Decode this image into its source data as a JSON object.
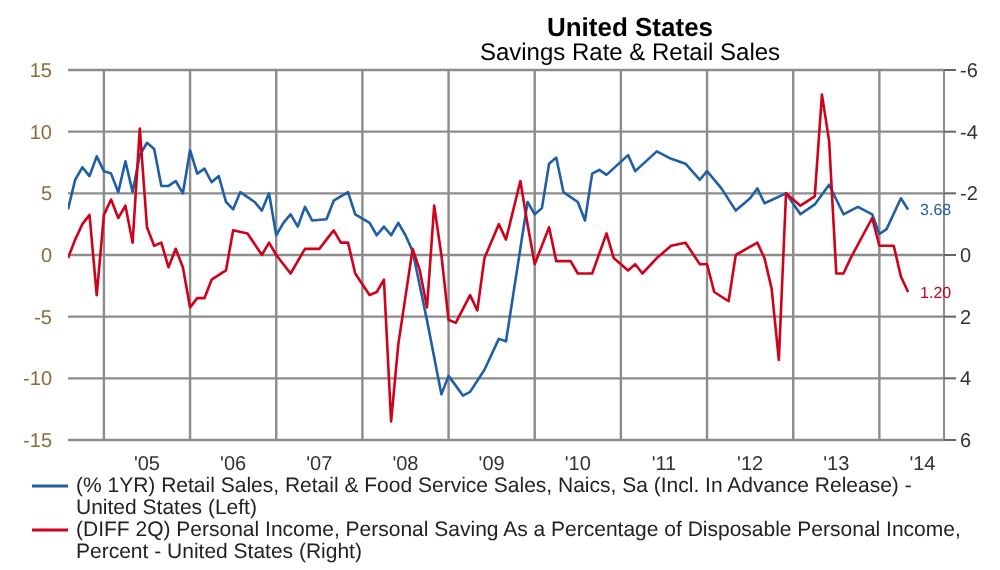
{
  "chart_data": {
    "type": "line",
    "title": "United States",
    "subtitle": "Savings Rate & Retail Sales",
    "xlim": [
      "2004-08",
      "2014-10"
    ],
    "xticks": [
      {
        "value": "2005-01",
        "label": null
      },
      {
        "value": "2005-07",
        "label": "'05"
      },
      {
        "value": "2006-01",
        "label": null
      },
      {
        "value": "2006-07",
        "label": "'06"
      },
      {
        "value": "2007-01",
        "label": null
      },
      {
        "value": "2007-07",
        "label": "'07"
      },
      {
        "value": "2008-01",
        "label": null
      },
      {
        "value": "2008-07",
        "label": "'08"
      },
      {
        "value": "2009-01",
        "label": null
      },
      {
        "value": "2009-07",
        "label": "'09"
      },
      {
        "value": "2010-01",
        "label": null
      },
      {
        "value": "2010-07",
        "label": "'10"
      },
      {
        "value": "2011-01",
        "label": null
      },
      {
        "value": "2011-07",
        "label": "'11"
      },
      {
        "value": "2012-01",
        "label": null
      },
      {
        "value": "2012-07",
        "label": "'12"
      },
      {
        "value": "2013-01",
        "label": null
      },
      {
        "value": "2013-07",
        "label": "'13"
      },
      {
        "value": "2014-01",
        "label": null
      },
      {
        "value": "2014-07",
        "label": "'14"
      }
    ],
    "ylim": [
      -15,
      15
    ],
    "yticks": [
      -15,
      -10,
      -5,
      0,
      5,
      10,
      15
    ],
    "y2lim": [
      6,
      -6
    ],
    "y2ticks": [
      6,
      4,
      2,
      0,
      -2,
      -4,
      -6
    ],
    "grid": true,
    "legend": "bottom",
    "series": [
      {
        "name": "(% 1YR) Retail Sales, Retail & Food Service Sales, Naics, Sa (Incl. In Advance Release) - United States  (Left)",
        "color": "#1f5fa6",
        "x": [
          "2004-08",
          "2004-09",
          "2004-10",
          "2004-11",
          "2004-12",
          "2005-01",
          "2005-02",
          "2005-03",
          "2005-04",
          "2005-05",
          "2005-06",
          "2005-07",
          "2005-08",
          "2005-09",
          "2005-10",
          "2005-11",
          "2005-12",
          "2006-01",
          "2006-02",
          "2006-03",
          "2006-04",
          "2006-05",
          "2006-06",
          "2006-07",
          "2006-08",
          "2006-10",
          "2006-11",
          "2006-12",
          "2007-01",
          "2007-02",
          "2007-03",
          "2007-04",
          "2007-05",
          "2007-06",
          "2007-08",
          "2007-09",
          "2007-11",
          "2007-12",
          "2008-02",
          "2008-03",
          "2008-04",
          "2008-05",
          "2008-06",
          "2008-07",
          "2008-08",
          "2008-10",
          "2008-12",
          "2009-01",
          "2009-03",
          "2009-04",
          "2009-06",
          "2009-08",
          "2009-09",
          "2009-12",
          "2010-01",
          "2010-02",
          "2010-03",
          "2010-04",
          "2010-05",
          "2010-07",
          "2010-08",
          "2010-09",
          "2010-10",
          "2010-11",
          "2011-02",
          "2011-03",
          "2011-06",
          "2011-08",
          "2011-10",
          "2011-12",
          "2012-01",
          "2012-03",
          "2012-05",
          "2012-07",
          "2012-08",
          "2012-09",
          "2012-12",
          "2013-02",
          "2013-04",
          "2013-06",
          "2013-08",
          "2013-10",
          "2013-12",
          "2014-01",
          "2014-02",
          "2014-04",
          "2014-05"
        ],
        "values": [
          3.7,
          6.1,
          7.1,
          6.4,
          8.0,
          6.8,
          6.6,
          5.1,
          7.6,
          5.1,
          8.1,
          9.1,
          8.6,
          5.6,
          5.6,
          6.0,
          5.0,
          8.5,
          6.6,
          7.0,
          5.9,
          6.4,
          4.3,
          3.7,
          5.1,
          4.3,
          3.6,
          5.0,
          1.6,
          2.6,
          3.3,
          2.3,
          3.9,
          2.8,
          2.9,
          4.4,
          5.1,
          3.3,
          2.6,
          1.6,
          2.3,
          1.6,
          2.6,
          1.6,
          0.3,
          -5.3,
          -11.3,
          -9.8,
          -11.4,
          -11.1,
          -9.3,
          -6.8,
          -7.0,
          4.3,
          3.3,
          3.8,
          7.4,
          7.9,
          5.1,
          4.3,
          2.8,
          6.6,
          6.9,
          6.5,
          8.1,
          6.8,
          8.4,
          7.8,
          7.4,
          6.1,
          6.8,
          5.4,
          3.6,
          4.6,
          5.4,
          4.2,
          5.0,
          3.3,
          4.1,
          5.7,
          3.3,
          3.9,
          3.3,
          1.7,
          2.1,
          4.6,
          3.68
        ],
        "value_labels": [
          null,
          null,
          null,
          null,
          null,
          null,
          null,
          null,
          null,
          null,
          null,
          null,
          null,
          null,
          null,
          null,
          null,
          null,
          null,
          null,
          null,
          null,
          null,
          null,
          null,
          null,
          null,
          null,
          null,
          null,
          null,
          null,
          null,
          null,
          null,
          null,
          null,
          null,
          null,
          null,
          null,
          null,
          null,
          null,
          null,
          null,
          null,
          null,
          null,
          null,
          null,
          null,
          null,
          null,
          null,
          null,
          null,
          null,
          null,
          null,
          null,
          null,
          null,
          null,
          null,
          null,
          null,
          null,
          null,
          null,
          null,
          null,
          null,
          null,
          null,
          null,
          null,
          null,
          null,
          null,
          null,
          null,
          null,
          null,
          null,
          null,
          "3.68"
        ]
      },
      {
        "name": "(DIFF 2Q) Personal Income, Personal Saving As a Percentage of Disposable Personal Income, Percent - United States  (Right)",
        "color": "#d0021b",
        "axis": "y2",
        "x": [
          "2004-08",
          "2004-09",
          "2004-10",
          "2004-11",
          "2004-12",
          "2005-01",
          "2005-02",
          "2005-03",
          "2005-04",
          "2005-05",
          "2005-06",
          "2005-07",
          "2005-08",
          "2005-09",
          "2005-10",
          "2005-11",
          "2005-12",
          "2006-01",
          "2006-02",
          "2006-03",
          "2006-04",
          "2006-06",
          "2006-07",
          "2006-09",
          "2006-11",
          "2006-12",
          "2007-01",
          "2007-03",
          "2007-05",
          "2007-07",
          "2007-09",
          "2007-10",
          "2007-11",
          "2007-12",
          "2008-02",
          "2008-03",
          "2008-04",
          "2008-05",
          "2008-06",
          "2008-08",
          "2008-09",
          "2008-10",
          "2008-11",
          "2008-12",
          "2009-01",
          "2009-02",
          "2009-04",
          "2009-05",
          "2009-06",
          "2009-08",
          "2009-09",
          "2009-11",
          "2009-12",
          "2010-01",
          "2010-03",
          "2010-04",
          "2010-06",
          "2010-07",
          "2010-09",
          "2010-11",
          "2010-12",
          "2011-02",
          "2011-03",
          "2011-04",
          "2011-06",
          "2011-08",
          "2011-10",
          "2011-12",
          "2012-01",
          "2012-02",
          "2012-04",
          "2012-05",
          "2012-08",
          "2012-09",
          "2012-10",
          "2012-11",
          "2012-12",
          "2013-02",
          "2013-04",
          "2013-05",
          "2013-06",
          "2013-07",
          "2013-08",
          "2013-09",
          "2013-12",
          "2014-01",
          "2014-03",
          "2014-04",
          "2014-05"
        ],
        "values": [
          0.1,
          -0.5,
          -1.0,
          -1.3,
          1.3,
          -1.3,
          -1.8,
          -1.2,
          -1.6,
          -0.4,
          -4.1,
          -0.9,
          -0.3,
          -0.4,
          0.4,
          -0.2,
          0.4,
          1.7,
          1.4,
          1.4,
          0.8,
          0.5,
          -0.8,
          -0.7,
          0.0,
          -0.4,
          0.0,
          0.6,
          -0.2,
          -0.2,
          -0.8,
          -0.4,
          -0.4,
          0.6,
          1.3,
          1.2,
          0.8,
          5.4,
          2.9,
          -0.2,
          0.5,
          1.7,
          -1.6,
          0.0,
          2.1,
          2.2,
          1.3,
          1.8,
          0.1,
          -1.0,
          -0.5,
          -2.4,
          -1.0,
          0.3,
          -0.9,
          0.2,
          0.2,
          0.6,
          0.6,
          -0.7,
          0.1,
          0.5,
          0.3,
          0.6,
          0.1,
          -0.3,
          -0.4,
          0.3,
          0.3,
          1.2,
          1.5,
          0.0,
          -0.4,
          0.1,
          1.1,
          3.4,
          -2.0,
          -1.6,
          -1.9,
          -5.2,
          -3.7,
          0.6,
          0.6,
          0.1,
          -1.2,
          -0.3,
          -0.3,
          0.7,
          1.2
        ],
        "value_labels": [
          null,
          null,
          null,
          null,
          null,
          null,
          null,
          null,
          null,
          null,
          null,
          null,
          null,
          null,
          null,
          null,
          null,
          null,
          null,
          null,
          null,
          null,
          null,
          null,
          null,
          null,
          null,
          null,
          null,
          null,
          null,
          null,
          null,
          null,
          null,
          null,
          null,
          null,
          null,
          null,
          null,
          null,
          null,
          null,
          null,
          null,
          null,
          null,
          null,
          null,
          null,
          null,
          null,
          null,
          null,
          null,
          null,
          null,
          null,
          null,
          null,
          null,
          null,
          null,
          null,
          null,
          null,
          null,
          null,
          null,
          null,
          null,
          null,
          null,
          null,
          null,
          null,
          null,
          null,
          null,
          null,
          null,
          null,
          null,
          null,
          null,
          null,
          null,
          "1.20"
        ]
      }
    ]
  }
}
